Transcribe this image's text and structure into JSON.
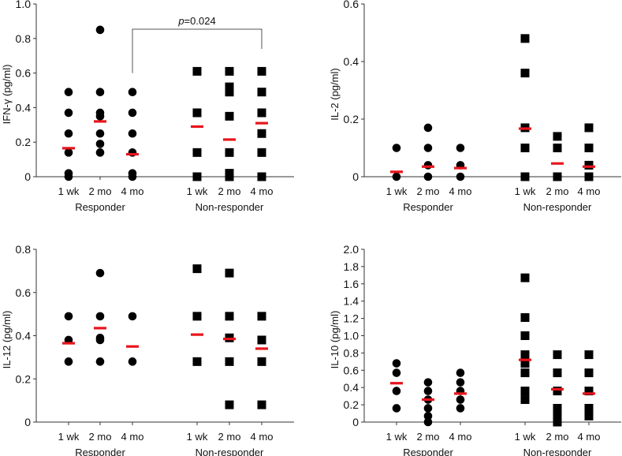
{
  "chart_data": [
    {
      "type": "scatter",
      "ylabel": "IFN-γ (pg/ml)",
      "ylim": [
        0,
        1.0
      ],
      "yticks": [
        "0",
        "0.2",
        "0.4",
        "0.6",
        "0.8",
        "1.0"
      ],
      "groups": [
        {
          "name": "Responder",
          "marker": "circle",
          "categories": [
            {
              "label": "1 wk",
              "values": [
                0.49,
                0.37,
                0.25,
                0.14,
                0.02,
                0.0
              ],
              "median": 0.165
            },
            {
              "label": "2 mo",
              "values": [
                0.85,
                0.49,
                0.37,
                0.35,
                0.25,
                0.19,
                0.14
              ],
              "median": 0.32
            },
            {
              "label": "4 mo",
              "values": [
                0.49,
                0.37,
                0.25,
                0.14,
                0.02,
                0.0
              ],
              "median": 0.13
            }
          ]
        },
        {
          "name": "Non-responder",
          "marker": "square",
          "categories": [
            {
              "label": "1 wk",
              "values": [
                0.61,
                0.37,
                0.14,
                0.0
              ],
              "median": 0.29
            },
            {
              "label": "2 mo",
              "values": [
                0.61,
                0.52,
                0.49,
                0.35,
                0.14,
                0.02,
                0.0
              ],
              "median": 0.215
            },
            {
              "label": "4 mo",
              "values": [
                0.61,
                0.49,
                0.37,
                0.25,
                0.14,
                0.0
              ],
              "median": 0.31
            }
          ]
        }
      ],
      "annotation": {
        "p_label": "p",
        "p_value": "=0.024",
        "from": "Responder 4 mo",
        "to": "Non-responder 4 mo"
      }
    },
    {
      "type": "scatter",
      "ylabel": "IL-2 (pg/ml)",
      "ylim": [
        0,
        0.6
      ],
      "yticks": [
        "0",
        "0.2",
        "0.4",
        "0.6"
      ],
      "groups": [
        {
          "name": "Responder",
          "marker": "circle",
          "categories": [
            {
              "label": "1 wk",
              "values": [
                0.1,
                0.0
              ],
              "median": 0.017
            },
            {
              "label": "2 mo",
              "values": [
                0.17,
                0.1,
                0.04,
                0.0
              ],
              "median": 0.035
            },
            {
              "label": "4 mo",
              "values": [
                0.1,
                0.04,
                0.0
              ],
              "median": 0.03
            }
          ]
        },
        {
          "name": "Non-responder",
          "marker": "square",
          "categories": [
            {
              "label": "1 wk",
              "values": [
                0.48,
                0.36,
                0.17,
                0.1,
                0.0
              ],
              "median": 0.167
            },
            {
              "label": "2 mo",
              "values": [
                0.14,
                0.1,
                0.0
              ],
              "median": 0.046
            },
            {
              "label": "4 mo",
              "values": [
                0.17,
                0.1,
                0.04,
                0.0
              ],
              "median": 0.035
            }
          ]
        }
      ]
    },
    {
      "type": "scatter",
      "ylabel": "IL-12 (pg/ml)",
      "ylim": [
        0,
        0.8
      ],
      "yticks": [
        "0",
        "0.2",
        "0.4",
        "0.6",
        "0.8"
      ],
      "groups": [
        {
          "name": "Responder",
          "marker": "circle",
          "categories": [
            {
              "label": "1 wk",
              "values": [
                0.49,
                0.38,
                0.28
              ],
              "median": 0.365
            },
            {
              "label": "2 mo",
              "values": [
                0.69,
                0.49,
                0.39,
                0.38,
                0.28
              ],
              "median": 0.435
            },
            {
              "label": "4 mo",
              "values": [
                0.49,
                0.28
              ],
              "median": 0.35
            }
          ]
        },
        {
          "name": "Non-responder",
          "marker": "square",
          "categories": [
            {
              "label": "1 wk",
              "values": [
                0.71,
                0.49,
                0.28
              ],
              "median": 0.405
            },
            {
              "label": "2 mo",
              "values": [
                0.69,
                0.49,
                0.39,
                0.28,
                0.08
              ],
              "median": 0.385
            },
            {
              "label": "4 mo",
              "values": [
                0.49,
                0.38,
                0.28,
                0.08
              ],
              "median": 0.34
            }
          ]
        }
      ]
    },
    {
      "type": "scatter",
      "ylabel": "IL-10 (pg/ml)",
      "ylim": [
        0,
        2.0
      ],
      "yticks": [
        "0",
        "0.2",
        "0.4",
        "0.6",
        "0.8",
        "1.0",
        "1.2",
        "1.4",
        "1.6",
        "1.8",
        "2.0"
      ],
      "groups": [
        {
          "name": "Responder",
          "marker": "circle",
          "categories": [
            {
              "label": "1 wk",
              "values": [
                0.68,
                0.57,
                0.36,
                0.16
              ],
              "median": 0.45
            },
            {
              "label": "2 mo",
              "values": [
                0.46,
                0.36,
                0.26,
                0.16,
                0.07,
                0.0
              ],
              "median": 0.26
            },
            {
              "label": "4 mo",
              "values": [
                0.57,
                0.46,
                0.36,
                0.26,
                0.16
              ],
              "median": 0.33
            }
          ]
        },
        {
          "name": "Non-responder",
          "marker": "square",
          "categories": [
            {
              "label": "1 wk",
              "values": [
                1.67,
                1.21,
                1.0,
                0.78,
                0.68,
                0.57,
                0.36,
                0.26
              ],
              "median": 0.72
            },
            {
              "label": "2 mo",
              "values": [
                0.78,
                0.57,
                0.36,
                0.16,
                0.07,
                0.0
              ],
              "median": 0.38
            },
            {
              "label": "4 mo",
              "values": [
                0.78,
                0.57,
                0.36,
                0.16,
                0.07
              ],
              "median": 0.33
            }
          ]
        }
      ]
    }
  ],
  "colors": {
    "points": "#000000",
    "median": "#e8141c",
    "axis": "#333333",
    "bracket": "#555555"
  }
}
